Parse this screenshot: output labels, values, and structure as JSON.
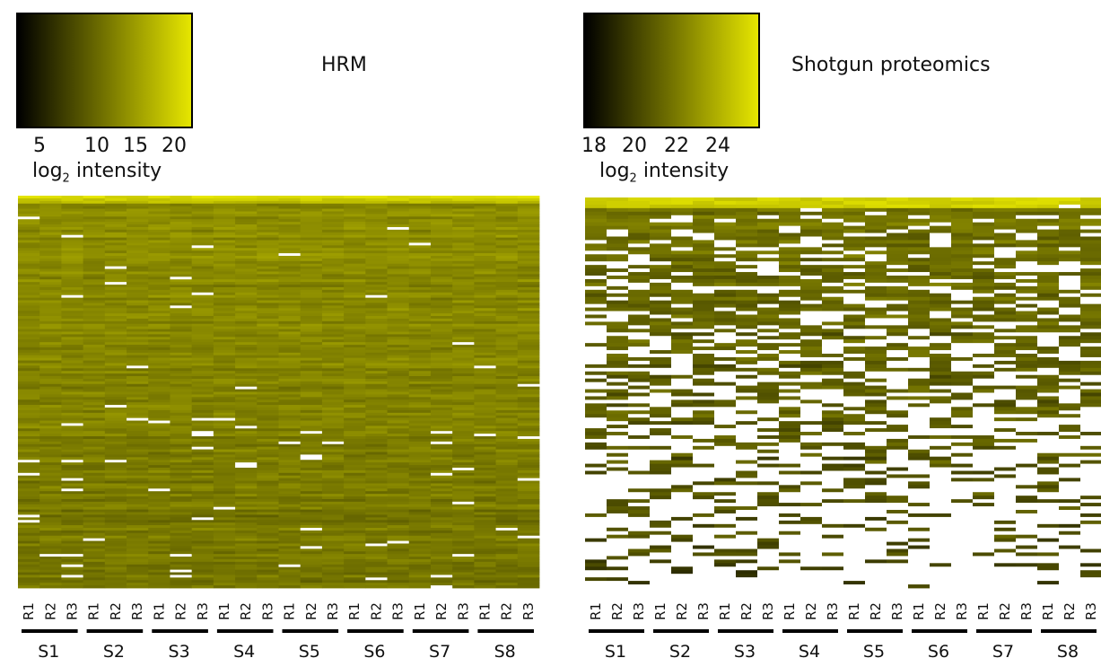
{
  "colors": {
    "low": "#000000",
    "high": "#e6e600",
    "missing": "#ffffff"
  },
  "panels": [
    {
      "id": "hrm",
      "title": "HRM",
      "legend": {
        "ticks": [
          "5",
          "10",
          "15",
          "20"
        ],
        "label_main": "log",
        "label_sub": "2",
        "label_rest": " intensity",
        "range": [
          2,
          22
        ]
      },
      "icon": "colorbar-gradient"
    },
    {
      "id": "shotgun",
      "title": "Shotgun proteomics",
      "legend": {
        "ticks": [
          "18",
          "20",
          "22",
          "24"
        ],
        "label_main": "log",
        "label_sub": "2",
        "label_rest": " intensity",
        "range": [
          17.5,
          26
        ]
      },
      "icon": "colorbar-gradient"
    }
  ],
  "chart_data": [
    {
      "type": "heatmap",
      "title": "HRM",
      "samples": [
        "S1",
        "S2",
        "S3",
        "S4",
        "S5",
        "S6",
        "S7",
        "S8"
      ],
      "replicates": [
        "R1",
        "R2",
        "R3"
      ],
      "color_scale_label": "log2 intensity",
      "color_range": [
        2,
        22
      ],
      "missing_fraction": 0.01
    },
    {
      "type": "heatmap",
      "title": "Shotgun proteomics",
      "samples": [
        "S1",
        "S2",
        "S3",
        "S4",
        "S5",
        "S6",
        "S7",
        "S8"
      ],
      "replicates": [
        "R1",
        "R2",
        "R3"
      ],
      "color_scale_label": "log2 intensity",
      "color_range": [
        17.5,
        26
      ],
      "missing_fraction": 0.45
    }
  ]
}
